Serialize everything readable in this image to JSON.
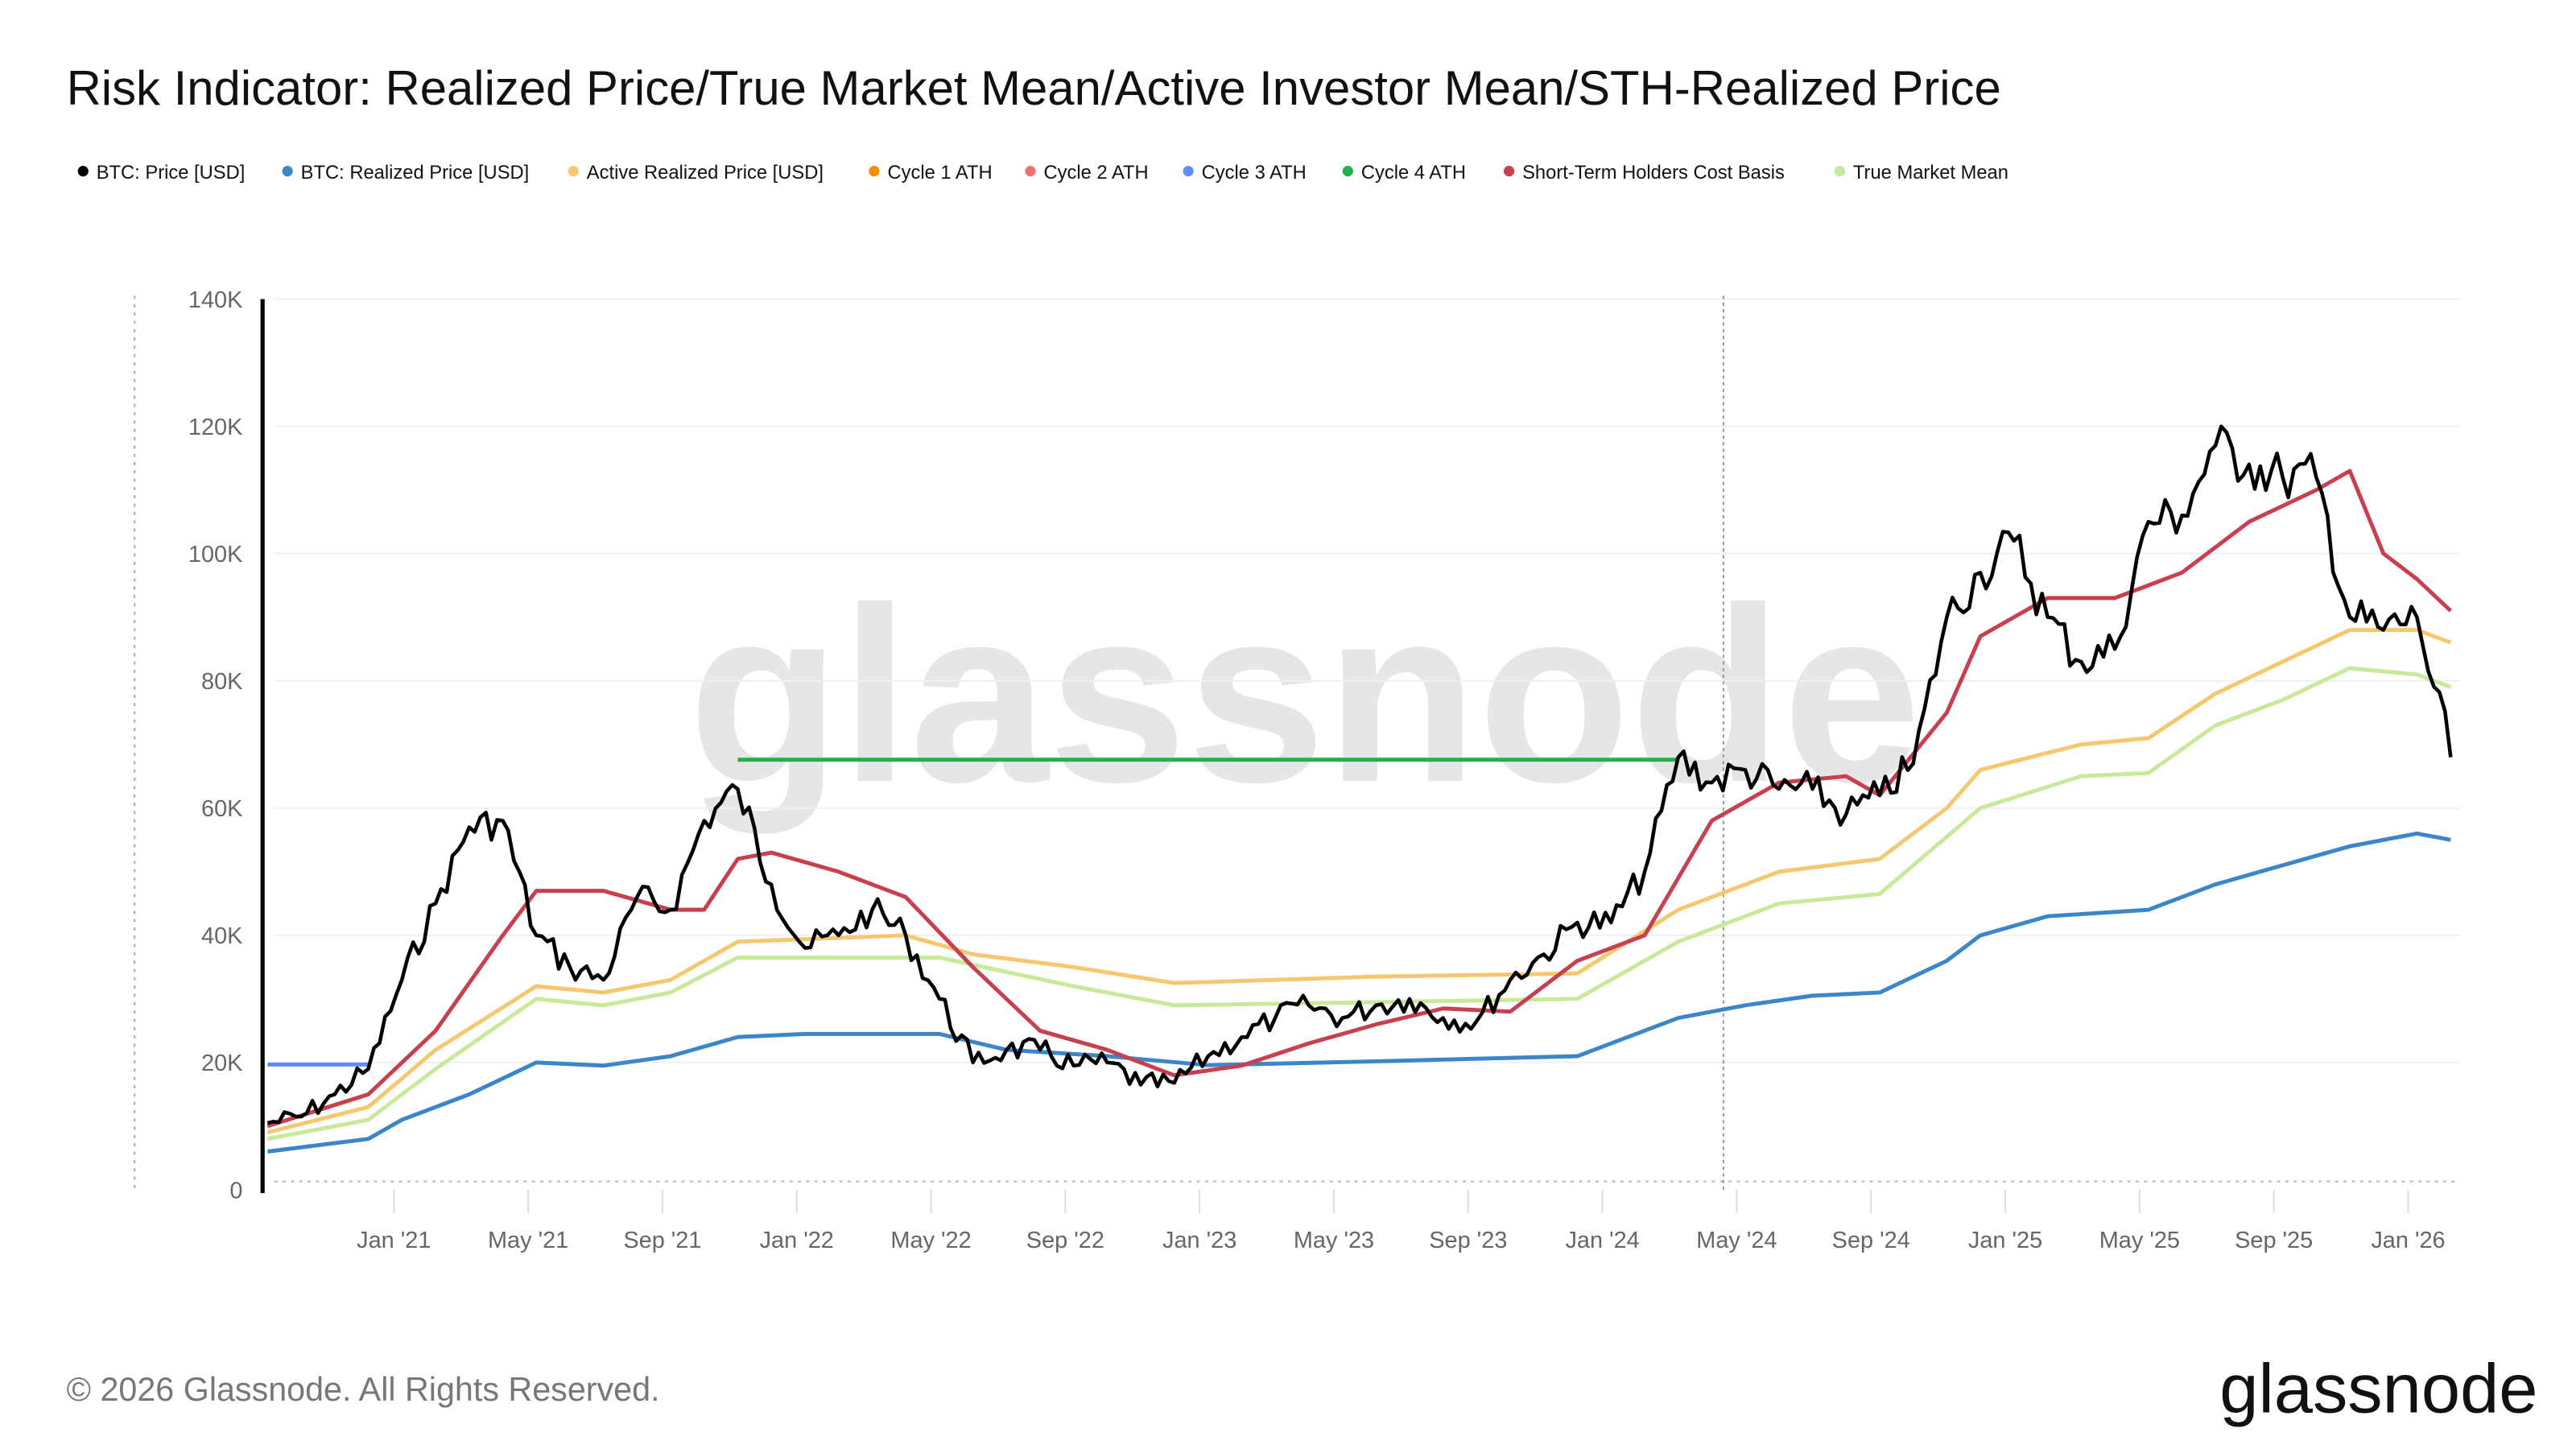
{
  "title": "Risk Indicator: Realized Price/True Market Mean/Active Investor Mean/STH-Realized Price",
  "footer": {
    "copyright": "© 2026 Glassnode. All Rights Reserved.",
    "logo": "glassnode"
  },
  "watermark": "glassnode",
  "chart_data": {
    "type": "line",
    "title": "Risk Indicator: Realized Price/True Market Mean/Active Investor Mean/STH-Realized Price",
    "xlabel": "",
    "ylabel": "",
    "ylim": [
      0,
      140000
    ],
    "y_ticks": [
      "0",
      "20K",
      "40K",
      "60K",
      "80K",
      "100K",
      "120K",
      "140K"
    ],
    "x_ticks": [
      "Jan '21",
      "May '21",
      "Sep '21",
      "Jan '22",
      "May '22",
      "Sep '22",
      "Jan '23",
      "May '23",
      "Sep '23",
      "Jan '24",
      "May '24",
      "Sep '24",
      "Jan '25",
      "May '25",
      "Sep '25",
      "Jan '26"
    ],
    "x_range": [
      "2020-09",
      "2026-02"
    ],
    "grid": true,
    "legend_position": "top-left",
    "series": [
      {
        "name": "BTC: Price [USD]",
        "color": "#000000",
        "points": [
          [
            "2020-09",
            10500
          ],
          [
            "2020-10",
            11500
          ],
          [
            "2020-11",
            15000
          ],
          [
            "2020-12",
            19000
          ],
          [
            "2021-01",
            33000
          ],
          [
            "2021-02",
            45000
          ],
          [
            "2021-03",
            57000
          ],
          [
            "2021-04",
            58000
          ],
          [
            "2021-05",
            40000
          ],
          [
            "2021-06",
            35000
          ],
          [
            "2021-07",
            33000
          ],
          [
            "2021-08",
            46000
          ],
          [
            "2021-09",
            44000
          ],
          [
            "2021-10",
            58000
          ],
          [
            "2021-11",
            63000
          ],
          [
            "2021-12",
            48000
          ],
          [
            "2022-01",
            38000
          ],
          [
            "2022-02",
            40000
          ],
          [
            "2022-03",
            44000
          ],
          [
            "2022-04",
            40000
          ],
          [
            "2022-05",
            30000
          ],
          [
            "2022-06",
            20000
          ],
          [
            "2022-07",
            22000
          ],
          [
            "2022-08",
            22000
          ],
          [
            "2022-09",
            19500
          ],
          [
            "2022-10",
            20000
          ],
          [
            "2022-11",
            16500
          ],
          [
            "2022-12",
            16800
          ],
          [
            "2023-01",
            21000
          ],
          [
            "2023-02",
            24000
          ],
          [
            "2023-03",
            27000
          ],
          [
            "2023-04",
            29000
          ],
          [
            "2023-05",
            27000
          ],
          [
            "2023-06",
            29000
          ],
          [
            "2023-07",
            30000
          ],
          [
            "2023-08",
            27000
          ],
          [
            "2023-09",
            26500
          ],
          [
            "2023-10",
            33000
          ],
          [
            "2023-11",
            37000
          ],
          [
            "2023-12",
            42000
          ],
          [
            "2024-01",
            42000
          ],
          [
            "2024-02",
            50000
          ],
          [
            "2024-03",
            68000
          ],
          [
            "2024-04",
            64000
          ],
          [
            "2024-05",
            66000
          ],
          [
            "2024-06",
            63000
          ],
          [
            "2024-07",
            63000
          ],
          [
            "2024-08",
            59000
          ],
          [
            "2024-09",
            62000
          ],
          [
            "2024-10",
            67000
          ],
          [
            "2024-11",
            90000
          ],
          [
            "2024-12",
            97000
          ],
          [
            "2025-01",
            102000
          ],
          [
            "2025-02",
            90000
          ],
          [
            "2025-03",
            83000
          ],
          [
            "2025-04",
            85000
          ],
          [
            "2025-05",
            105000
          ],
          [
            "2025-06",
            106000
          ],
          [
            "2025-07",
            117000
          ],
          [
            "2025-08",
            114000
          ],
          [
            "2025-09",
            112000
          ],
          [
            "2025-10",
            112000
          ],
          [
            "2025-11",
            90000
          ],
          [
            "2025-12",
            88000
          ],
          [
            "2026-01",
            90000
          ],
          [
            "2026-02",
            68000
          ]
        ]
      },
      {
        "name": "BTC: Realized Price [USD]",
        "color": "#3a86c8",
        "points": [
          [
            "2020-09",
            6000
          ],
          [
            "2020-12",
            8000
          ],
          [
            "2021-01",
            11000
          ],
          [
            "2021-03",
            15000
          ],
          [
            "2021-05",
            20000
          ],
          [
            "2021-07",
            19500
          ],
          [
            "2021-09",
            21000
          ],
          [
            "2021-11",
            24000
          ],
          [
            "2022-01",
            24500
          ],
          [
            "2022-05",
            24500
          ],
          [
            "2022-07",
            22000
          ],
          [
            "2022-10",
            21000
          ],
          [
            "2023-01",
            19600
          ],
          [
            "2023-06",
            20200
          ],
          [
            "2023-12",
            21000
          ],
          [
            "2024-03",
            27000
          ],
          [
            "2024-05",
            29000
          ],
          [
            "2024-07",
            30500
          ],
          [
            "2024-09",
            31000
          ],
          [
            "2024-11",
            36000
          ],
          [
            "2024-12",
            40000
          ],
          [
            "2025-02",
            43000
          ],
          [
            "2025-05",
            44000
          ],
          [
            "2025-07",
            48000
          ],
          [
            "2025-09",
            51000
          ],
          [
            "2025-11",
            54000
          ],
          [
            "2026-01",
            56000
          ],
          [
            "2026-02",
            55000
          ]
        ]
      },
      {
        "name": "Active Realized Price [USD]",
        "color": "#f5c76f",
        "points": [
          [
            "2020-09",
            9000
          ],
          [
            "2020-12",
            13000
          ],
          [
            "2021-02",
            22000
          ],
          [
            "2021-05",
            32000
          ],
          [
            "2021-07",
            31000
          ],
          [
            "2021-09",
            33000
          ],
          [
            "2021-11",
            39000
          ],
          [
            "2022-04",
            40000
          ],
          [
            "2022-06",
            37000
          ],
          [
            "2022-09",
            35000
          ],
          [
            "2022-12",
            32500
          ],
          [
            "2023-06",
            33500
          ],
          [
            "2023-12",
            34000
          ],
          [
            "2024-03",
            44000
          ],
          [
            "2024-06",
            50000
          ],
          [
            "2024-09",
            52000
          ],
          [
            "2024-11",
            60000
          ],
          [
            "2024-12",
            66000
          ],
          [
            "2025-03",
            70000
          ],
          [
            "2025-05",
            71000
          ],
          [
            "2025-07",
            78000
          ],
          [
            "2025-09",
            83000
          ],
          [
            "2025-11",
            88000
          ],
          [
            "2026-01",
            88000
          ],
          [
            "2026-02",
            86000
          ]
        ]
      },
      {
        "name": "Cycle 1 ATH",
        "color": "#f28c00",
        "points": []
      },
      {
        "name": "Cycle 2 ATH",
        "color": "#f07070",
        "points": []
      },
      {
        "name": "Cycle 3 ATH",
        "color": "#5b8ff9",
        "points": [
          [
            "2020-09",
            19700
          ],
          [
            "2020-12",
            19700
          ]
        ]
      },
      {
        "name": "Cycle 4 ATH",
        "color": "#22b04b",
        "points": [
          [
            "2021-11",
            67600
          ],
          [
            "2024-03",
            67600
          ]
        ]
      },
      {
        "name": "Short-Term Holders Cost Basis",
        "color": "#c8404f",
        "points": [
          [
            "2020-09",
            10000
          ],
          [
            "2020-12",
            15000
          ],
          [
            "2021-02",
            25000
          ],
          [
            "2021-04",
            40000
          ],
          [
            "2021-05",
            47000
          ],
          [
            "2021-07",
            47000
          ],
          [
            "2021-09",
            44000
          ],
          [
            "2021-10",
            44000
          ],
          [
            "2021-11",
            52000
          ],
          [
            "2021-12",
            53000
          ],
          [
            "2022-02",
            50000
          ],
          [
            "2022-04",
            46000
          ],
          [
            "2022-06",
            35000
          ],
          [
            "2022-08",
            25000
          ],
          [
            "2022-10",
            22000
          ],
          [
            "2022-12",
            18000
          ],
          [
            "2023-02",
            19500
          ],
          [
            "2023-04",
            23000
          ],
          [
            "2023-06",
            26000
          ],
          [
            "2023-08",
            28500
          ],
          [
            "2023-10",
            28000
          ],
          [
            "2023-12",
            36000
          ],
          [
            "2024-02",
            40000
          ],
          [
            "2024-04",
            58000
          ],
          [
            "2024-06",
            64000
          ],
          [
            "2024-08",
            65000
          ],
          [
            "2024-09",
            62000
          ],
          [
            "2024-11",
            75000
          ],
          [
            "2024-12",
            87000
          ],
          [
            "2025-02",
            93000
          ],
          [
            "2025-04",
            93000
          ],
          [
            "2025-06",
            97000
          ],
          [
            "2025-08",
            105000
          ],
          [
            "2025-10",
            110000
          ],
          [
            "2025-11",
            113000
          ],
          [
            "2025-12",
            100000
          ],
          [
            "2026-01",
            96000
          ],
          [
            "2026-02",
            91000
          ]
        ]
      },
      {
        "name": "True Market Mean",
        "color": "#c8e89a",
        "points": [
          [
            "2020-09",
            8000
          ],
          [
            "2020-12",
            11000
          ],
          [
            "2021-02",
            19000
          ],
          [
            "2021-05",
            30000
          ],
          [
            "2021-07",
            29000
          ],
          [
            "2021-09",
            31000
          ],
          [
            "2021-11",
            36500
          ],
          [
            "2022-05",
            36500
          ],
          [
            "2022-09",
            32000
          ],
          [
            "2022-12",
            29000
          ],
          [
            "2023-06",
            29500
          ],
          [
            "2023-12",
            30000
          ],
          [
            "2024-03",
            39000
          ],
          [
            "2024-06",
            45000
          ],
          [
            "2024-09",
            46500
          ],
          [
            "2024-12",
            60000
          ],
          [
            "2025-03",
            65000
          ],
          [
            "2025-05",
            65500
          ],
          [
            "2025-07",
            73000
          ],
          [
            "2025-09",
            77000
          ],
          [
            "2025-11",
            82000
          ],
          [
            "2026-01",
            81000
          ],
          [
            "2026-02",
            79000
          ]
        ]
      }
    ]
  }
}
